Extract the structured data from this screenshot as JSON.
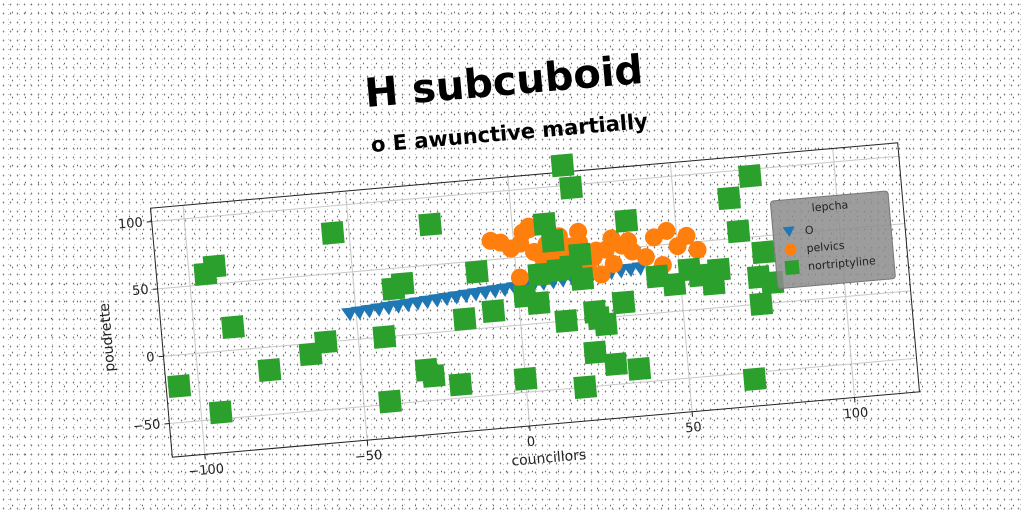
{
  "chart_data": {
    "type": "scatter",
    "title": "H subcuboid",
    "subtitle": "o E awunctive martially",
    "xlabel": "councillors",
    "ylabel": "poudrette",
    "xlim": [
      -110,
      120
    ],
    "ylim": [
      -75,
      110
    ],
    "xticks": [
      -100,
      -50,
      0,
      50,
      100
    ],
    "yticks": [
      -50,
      0,
      50,
      100
    ],
    "xtick_labels": [
      "−100",
      "−50",
      "0",
      "50",
      "100"
    ],
    "ytick_labels": [
      "−50",
      "0",
      "50",
      "100"
    ],
    "grid": true,
    "legend": {
      "title": "lepcha",
      "position": "right"
    },
    "series": [
      {
        "name": "O",
        "marker": "triangle-down",
        "color": "#1f77b4",
        "x": [
          -52,
          -49,
          -46,
          -43,
          -40,
          -37,
          -34,
          -31,
          -28,
          -25,
          -22,
          -19,
          -16,
          -13,
          -10,
          -7,
          -4,
          -1,
          2,
          5,
          8,
          11,
          14,
          17,
          20,
          23,
          26,
          29,
          32,
          35,
          38
        ],
        "y": [
          19,
          19.5,
          20,
          20.5,
          21,
          21.5,
          22,
          22.5,
          23,
          23.5,
          24,
          24.5,
          25,
          25.5,
          26,
          26.5,
          27,
          27.5,
          28,
          28.5,
          29,
          29.5,
          30,
          30.5,
          31,
          31.5,
          32,
          32.5,
          33,
          33.5,
          34
        ]
      },
      {
        "name": "pelvics",
        "marker": "circle",
        "color": "#ff7f0e",
        "x": [
          -7,
          -4,
          -1,
          2,
          3,
          5,
          6,
          8,
          10,
          12,
          14,
          16,
          18,
          20,
          22,
          24,
          26,
          28,
          30,
          33,
          36,
          40,
          43,
          45,
          47,
          50,
          53,
          56,
          8,
          15,
          25,
          35,
          1,
          5,
          20,
          30
        ],
        "y": [
          64,
          62,
          57,
          60,
          68,
          72,
          53,
          50,
          58,
          48,
          63,
          55,
          46,
          57,
          38,
          45,
          32,
          50,
          39,
          52,
          47,
          42,
          56,
          35,
          60,
          48,
          55,
          44,
          40,
          45,
          50,
          55,
          35,
          70,
          65,
          58
        ]
      },
      {
        "name": "nortriptyline",
        "marker": "square",
        "color": "#2ca02c",
        "x": [
          17,
          19,
          -55,
          -106,
          -94,
          -95,
          -92,
          -88,
          -35,
          -20,
          -12,
          -25,
          -28,
          -30,
          0,
          2,
          6,
          -8,
          -17,
          7,
          13,
          17,
          20,
          23,
          26,
          18,
          10,
          35,
          43,
          56,
          60,
          67,
          69,
          76,
          74,
          74,
          74,
          -65,
          -78,
          -42,
          -60,
          -42,
          32,
          24,
          14,
          22,
          28,
          35,
          -38,
          48,
          53,
          62,
          12,
          20,
          70,
          78
        ],
        "y": [
          115,
          98,
          80,
          -23,
          -45,
          58,
          63,
          17,
          38,
          -40,
          42,
          80,
          -32,
          -27,
          -40,
          21,
          15,
          12,
          8,
          36,
          38,
          40,
          30,
          5,
          -5,
          -50,
          73,
          70,
          27,
          25,
          18,
          80,
          55,
          38,
          95,
          0,
          20,
          -8,
          -17,
          0,
          0,
          -48,
          10,
          0,
          0,
          -25,
          -35,
          -40,
          35,
          20,
          30,
          28,
          60,
          48,
          -55,
          15
        ]
      }
    ]
  }
}
